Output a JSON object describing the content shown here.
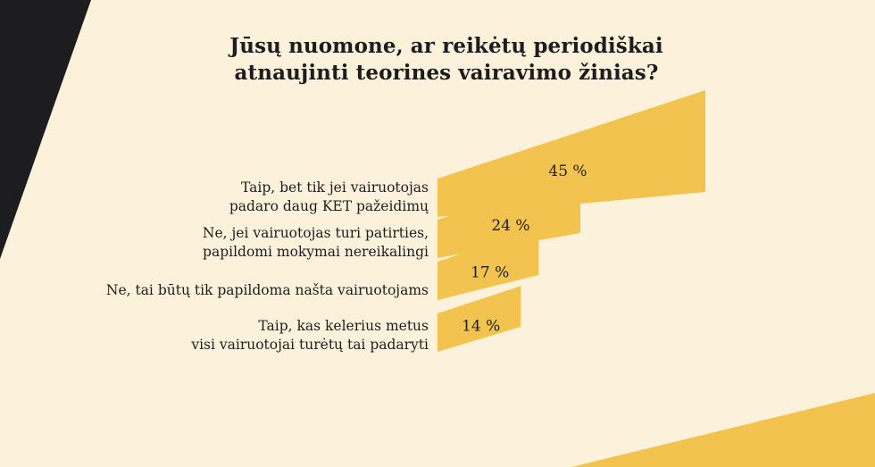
{
  "chart_data": {
    "type": "bar",
    "title": [
      "Jūsų nuomone, ar reikėtų periodiškai",
      "atnaujinti teorines vairavimo žinias?"
    ],
    "categories": [
      [
        "Taip, bet tik jei vairuotojas",
        "padaro daug KET pažeidimų"
      ],
      [
        "Ne, jei vairuotojas turi patirties,",
        "papildomi mokymai nereikalingi"
      ],
      [
        "Ne, tai būtų tik papildoma našta vairuotojams"
      ],
      [
        "Taip, kas kelerius metus",
        "visi vairuotojai turėtų tai padaryti"
      ]
    ],
    "values": [
      45,
      24,
      17,
      14
    ],
    "value_labels": [
      "45 %",
      "24 %",
      "17 %",
      "14 %"
    ],
    "unit": "%",
    "grid": false,
    "legend": "none"
  },
  "colors": {
    "background": "#fcf2db",
    "bar": "#f2c44f",
    "dark_shape": "#1d1d1f",
    "corner_shape": "#f2c44f",
    "text": "#1d1d1f"
  }
}
